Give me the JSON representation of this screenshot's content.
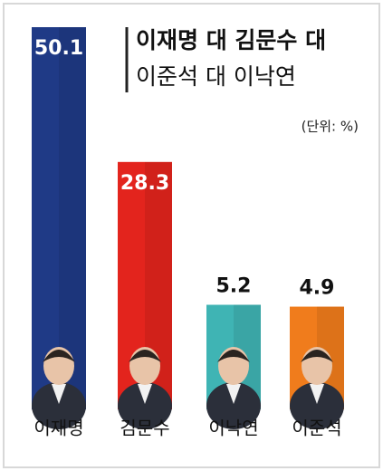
{
  "chart_data": {
    "type": "bar",
    "title": "이재명 대 김문수 대",
    "subtitle": "이준석 대 이낙연",
    "unit": "(단위: %)",
    "categories": [
      "이재명",
      "김문수",
      "이낙연",
      "이준석"
    ],
    "values": [
      50.1,
      28.3,
      5.2,
      4.9
    ],
    "colors": [
      "#1f3a86",
      "#e3241d",
      "#3fb4b4",
      "#f07c1c"
    ]
  }
}
